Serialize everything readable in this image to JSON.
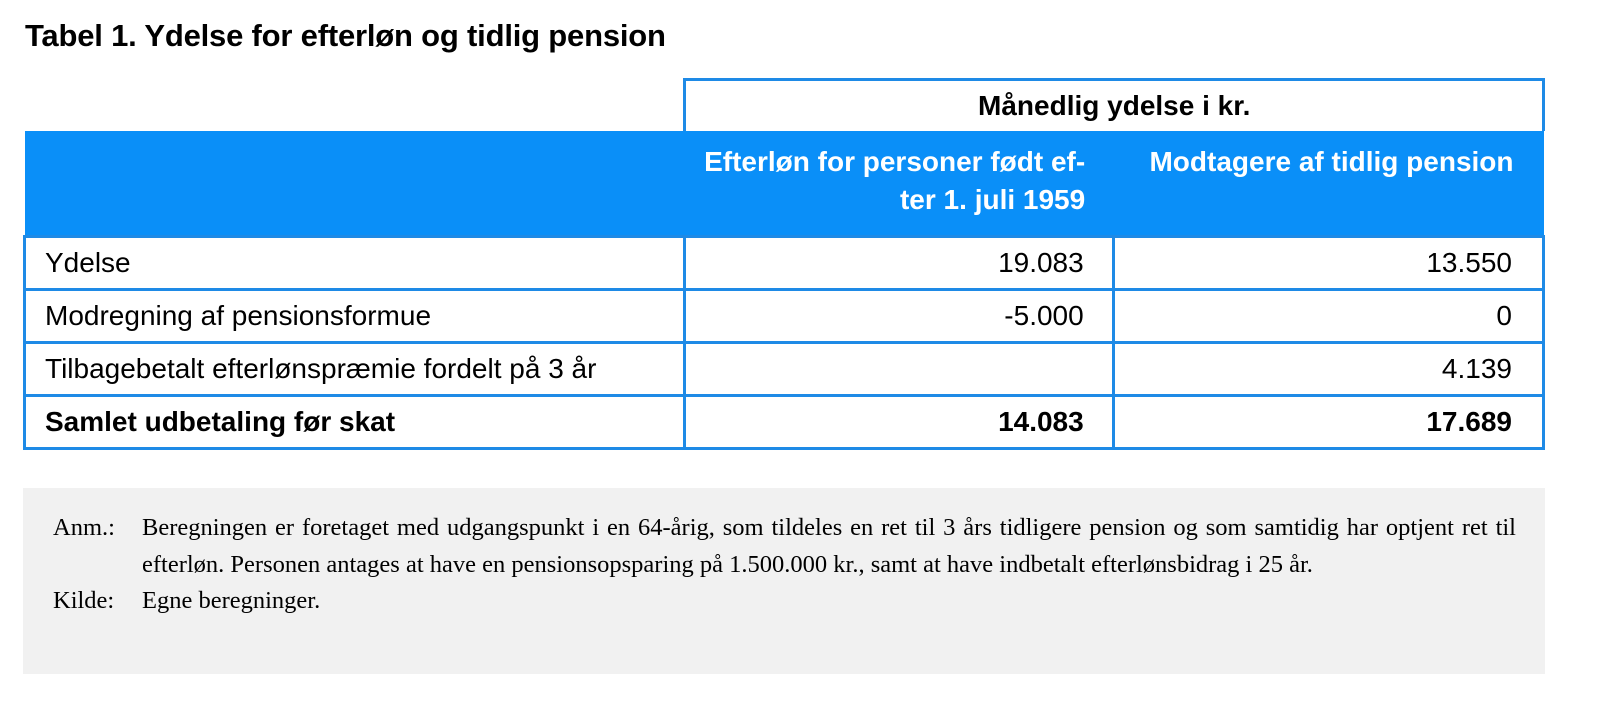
{
  "title": "Tabel 1. Ydelse for efterløn og tidlig pension",
  "table": {
    "super_header": "Månedlig ydelse i kr.",
    "columns": [
      "",
      "Efterløn for personer født ef-ter 1. juli 1959",
      "Modtagere af tidlig pension"
    ],
    "column_1_lines": [
      "Efterløn for personer født ef-",
      "ter 1. juli 1959"
    ],
    "rows": [
      {
        "label": "Ydelse",
        "values": [
          "19.083",
          "13.550"
        ],
        "bold": false
      },
      {
        "label": "Modregning af pensionsformue",
        "values": [
          "-5.000",
          "0"
        ],
        "bold": false
      },
      {
        "label": "Tilbagebetalt efterlønspræmie fordelt på 3 år",
        "values": [
          "",
          "4.139"
        ],
        "bold": false
      },
      {
        "label": "Samlet udbetaling før skat",
        "values": [
          "14.083",
          "17.689"
        ],
        "bold": true
      }
    ]
  },
  "note": {
    "anm_label": "Anm.:",
    "anm_text": "Beregningen er foretaget med udgangspunkt i en 64-årig, som tildeles en ret til 3 års tidligere pension og som samtidig har optjent ret til efterløn. Personen antages at have en pensionsopsparing på 1.500.000 kr., samt at have indbetalt efterlønsbidrag i 25 år.",
    "kilde_label": "Kilde:",
    "kilde_text": "Egne beregninger."
  },
  "colors": {
    "header_blue": "#0a8ff8",
    "border_blue": "#1e8ae6",
    "note_bg": "#f1f1f1"
  }
}
